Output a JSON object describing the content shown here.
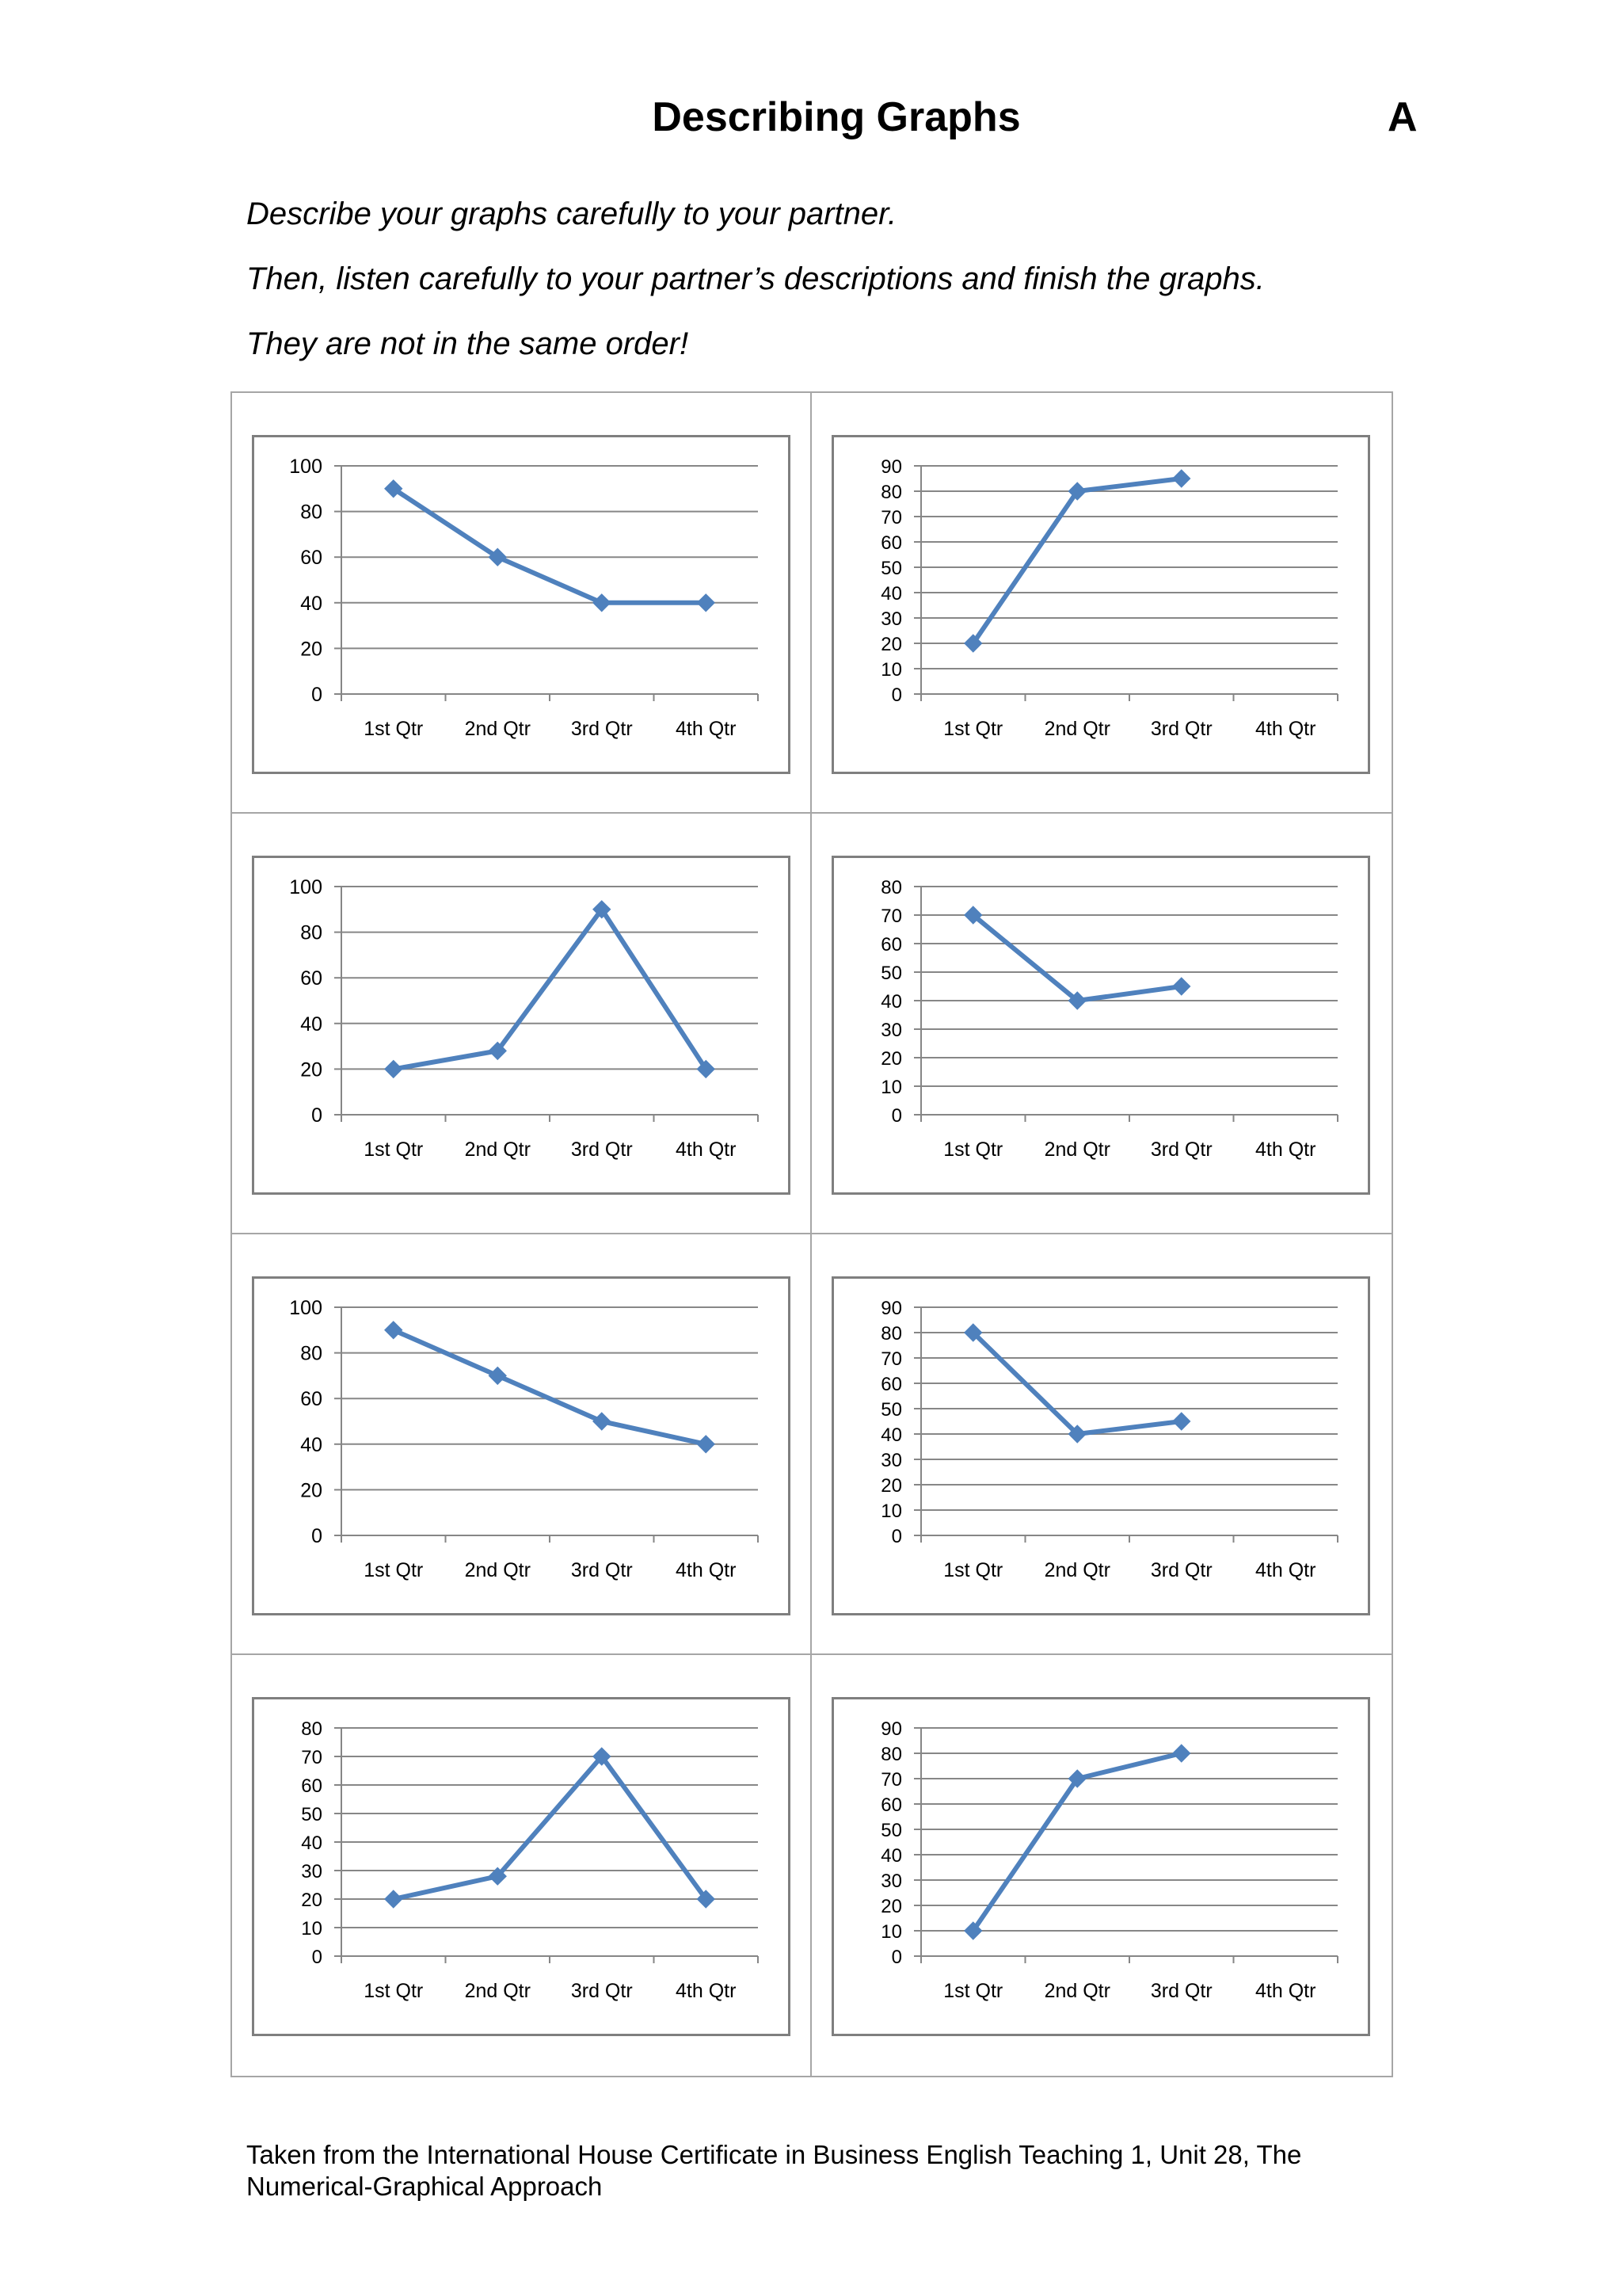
{
  "page": {
    "title": "Describing Graphs",
    "version": "A",
    "instructions": [
      "Describe your graphs carefully to your partner.",
      "Then, listen carefully to your partner’s descriptions and finish the graphs.",
      "They are not in the same order!"
    ],
    "footer": "Taken from the International House Certificate in Business English Teaching 1, Unit 28, The Numerical-Graphical Approach"
  },
  "colors": {
    "series": "#4f81bd",
    "gridline": "#878787",
    "axis": "#868686",
    "frame": "#7f7f7f",
    "cell_border": "#a6a6a6"
  },
  "chart_data": [
    {
      "type": "line",
      "categories": [
        "1st Qtr",
        "2nd Qtr",
        "3rd Qtr",
        "4th Qtr"
      ],
      "values": [
        90,
        60,
        40,
        40
      ],
      "ylim": [
        0,
        100
      ],
      "yticks": [
        0,
        20,
        40,
        60,
        80,
        100
      ],
      "marker": "diamond",
      "grid": true
    },
    {
      "type": "line",
      "categories": [
        "1st Qtr",
        "2nd Qtr",
        "3rd Qtr",
        "4th Qtr"
      ],
      "values": [
        20,
        80,
        85,
        null
      ],
      "ylim": [
        0,
        90
      ],
      "yticks": [
        0,
        10,
        20,
        30,
        40,
        50,
        60,
        70,
        80,
        90
      ],
      "marker": "diamond",
      "grid": true
    },
    {
      "type": "line",
      "categories": [
        "1st Qtr",
        "2nd Qtr",
        "3rd Qtr",
        "4th Qtr"
      ],
      "values": [
        20,
        28,
        90,
        20
      ],
      "ylim": [
        0,
        100
      ],
      "yticks": [
        0,
        20,
        40,
        60,
        80,
        100
      ],
      "marker": "diamond",
      "grid": true
    },
    {
      "type": "line",
      "categories": [
        "1st Qtr",
        "2nd Qtr",
        "3rd Qtr",
        "4th Qtr"
      ],
      "values": [
        70,
        40,
        45,
        null
      ],
      "ylim": [
        0,
        80
      ],
      "yticks": [
        0,
        10,
        20,
        30,
        40,
        50,
        60,
        70,
        80
      ],
      "marker": "diamond",
      "grid": true
    },
    {
      "type": "line",
      "categories": [
        "1st Qtr",
        "2nd Qtr",
        "3rd Qtr",
        "4th Qtr"
      ],
      "values": [
        90,
        70,
        50,
        40
      ],
      "ylim": [
        0,
        100
      ],
      "yticks": [
        0,
        20,
        40,
        60,
        80,
        100
      ],
      "marker": "diamond",
      "grid": true
    },
    {
      "type": "line",
      "categories": [
        "1st Qtr",
        "2nd Qtr",
        "3rd Qtr",
        "4th Qtr"
      ],
      "values": [
        80,
        40,
        45,
        null
      ],
      "ylim": [
        0,
        90
      ],
      "yticks": [
        0,
        10,
        20,
        30,
        40,
        50,
        60,
        70,
        80,
        90
      ],
      "marker": "diamond",
      "grid": true
    },
    {
      "type": "line",
      "categories": [
        "1st Qtr",
        "2nd Qtr",
        "3rd Qtr",
        "4th Qtr"
      ],
      "values": [
        20,
        28,
        70,
        20
      ],
      "ylim": [
        0,
        80
      ],
      "yticks": [
        0,
        10,
        20,
        30,
        40,
        50,
        60,
        70,
        80
      ],
      "marker": "diamond",
      "grid": true
    },
    {
      "type": "line",
      "categories": [
        "1st Qtr",
        "2nd Qtr",
        "3rd Qtr",
        "4th Qtr"
      ],
      "values": [
        10,
        70,
        80,
        null
      ],
      "ylim": [
        0,
        90
      ],
      "yticks": [
        0,
        10,
        20,
        30,
        40,
        50,
        60,
        70,
        80,
        90
      ],
      "marker": "diamond",
      "grid": true
    }
  ]
}
